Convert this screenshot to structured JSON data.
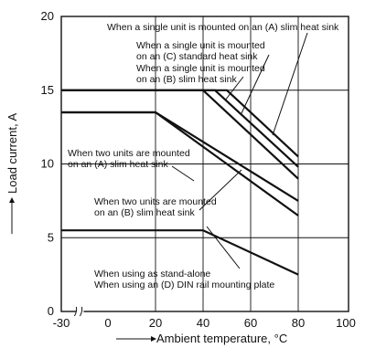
{
  "chart_data": {
    "type": "line",
    "xlabel": "Ambient temperature, °C",
    "ylabel": "Load current, A",
    "x_tick_labels": [
      "-30",
      "0",
      "20",
      "40",
      "60",
      "80",
      "100"
    ],
    "y_tick_labels": [
      "0",
      "5",
      "10",
      "15",
      "20"
    ],
    "x_axis_break_between": [
      -30,
      0
    ],
    "xlim": [
      -30,
      100
    ],
    "ylim": [
      0,
      20
    ],
    "grid": true,
    "series": [
      {
        "x": [
          -30,
          50,
          80
        ],
        "y": [
          15,
          15,
          10.5
        ],
        "annotation": "When a single unit is mounted on an (A) slim heat sink"
      },
      {
        "x": [
          -30,
          45,
          80
        ],
        "y": [
          15,
          15,
          9.8
        ],
        "annotation": "When a single unit is mounted on an (C) standard heat sink"
      },
      {
        "x": [
          -30,
          40,
          80
        ],
        "y": [
          15,
          15,
          9.0
        ],
        "annotation": "When a single unit is mounted on an (B) slim heat sink"
      },
      {
        "x": [
          -30,
          20,
          80
        ],
        "y": [
          13.5,
          13.5,
          7.5
        ],
        "annotation": "When two units are mounted on an (A) slim heat sink"
      },
      {
        "x": [
          -30,
          20,
          80
        ],
        "y": [
          13.5,
          13.5,
          6.5
        ],
        "annotation": "When two units are mounted on an (B) slim heat sink"
      },
      {
        "x": [
          -30,
          40,
          80
        ],
        "y": [
          5.5,
          5.5,
          2.5
        ],
        "annotation": "When using as stand-alone / When using an (D) DIN rail mounting plate"
      }
    ],
    "annotations": [
      {
        "lines": [
          "When a single unit is mounted on an (A) slim heat sink"
        ]
      },
      {
        "lines": [
          "When a single unit is mounted",
          "on an (C) standard heat sink"
        ]
      },
      {
        "lines": [
          "When a single unit is mounted",
          "on an (B) slim heat sink"
        ]
      },
      {
        "lines": [
          "When two units are mounted",
          "on an (A) slim heat sink"
        ]
      },
      {
        "lines": [
          "When two units are mounted",
          "on an (B) slim heat sink"
        ]
      },
      {
        "lines": [
          "When using as stand-alone",
          "When using an (D) DIN rail mounting plate"
        ]
      }
    ]
  }
}
